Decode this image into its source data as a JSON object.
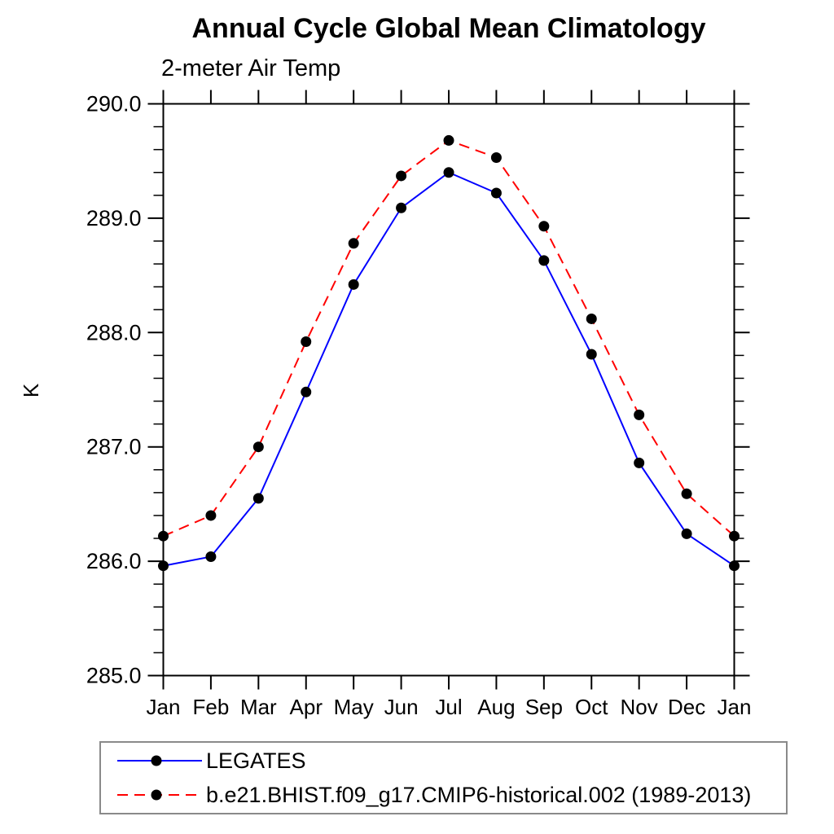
{
  "chart_data": {
    "type": "line",
    "title": "Annual Cycle Global Mean Climatology",
    "subtitle": "2-meter Air Temp",
    "ylabel": "K",
    "x_tick_labels": [
      "Jan",
      "Feb",
      "Mar",
      "Apr",
      "May",
      "Jun",
      "Jul",
      "Aug",
      "Sep",
      "Oct",
      "Nov",
      "Dec",
      "Jan"
    ],
    "ylim": [
      285.0,
      290.0
    ],
    "y_major_ticks": [
      290.0,
      289.0,
      288.0,
      287.0,
      286.0,
      285.0
    ],
    "y_major_tick_labels": [
      "290.0",
      "289.0",
      "288.0",
      "287.0",
      "286.0",
      "285.0"
    ],
    "y_minor_tick_step": 0.2,
    "grid": false,
    "legend_position": "bottom-left",
    "axis_color": "#000000",
    "marker_color": "#000000",
    "series": [
      {
        "name": "LEGATES",
        "color": "#0000ff",
        "line_style": "solid",
        "marker": "filled-circle",
        "values": [
          285.96,
          286.04,
          286.55,
          287.48,
          288.42,
          289.09,
          289.4,
          289.22,
          288.63,
          287.81,
          286.86,
          286.24,
          285.96
        ]
      },
      {
        "name": "b.e21.BHIST.f09_g17.CMIP6-historical.002 (1989-2013)",
        "color": "#ff0000",
        "line_style": "dashed",
        "marker": "filled-circle",
        "values": [
          286.22,
          286.4,
          287.0,
          287.92,
          288.78,
          289.37,
          289.68,
          289.53,
          288.93,
          288.12,
          287.28,
          286.59,
          286.22
        ]
      }
    ]
  }
}
